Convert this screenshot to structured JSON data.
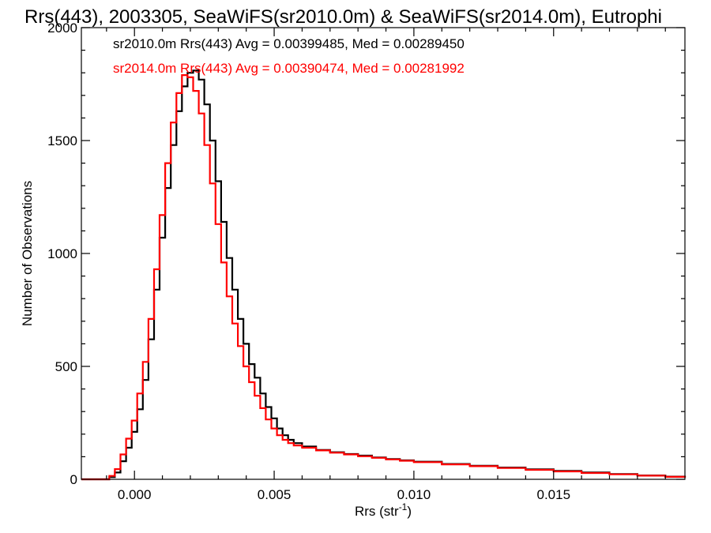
{
  "chart_data": {
    "type": "line",
    "subtype": "step-histogram",
    "title": "Rrs(443), 2003305, SeaWiFS(sr2010.0m) & SeaWiFS(sr2014.0m), Eutrophi",
    "xlabel": "Rrs (str",
    "xlabel_superscript": "-1",
    "xlabel_close": ")",
    "ylabel": "Number of Observations",
    "xlim": [
      -0.0019,
      0.0197
    ],
    "ylim": [
      0,
      2000
    ],
    "x_ticks": [
      0.0,
      0.005,
      0.01,
      0.015
    ],
    "x_tick_labels": [
      "0.000",
      "0.005",
      "0.010",
      "0.015"
    ],
    "y_ticks": [
      0,
      500,
      1000,
      1500,
      2000
    ],
    "y_tick_labels": [
      "0",
      "500",
      "1000",
      "1500",
      "2000"
    ],
    "legend_position": "top-left",
    "grid": false,
    "series": [
      {
        "name": "sr2010.0m Rrs(443)",
        "label": "sr2010.0m Rrs(443) Avg = 0.00399485, Med = 0.00289450",
        "color": "#000000",
        "x": [
          -0.0019,
          -0.0011,
          -0.0009,
          -0.0007,
          -0.0005,
          -0.0003,
          -0.0001,
          0.0001,
          0.0003,
          0.0005,
          0.0007,
          0.0009,
          0.0011,
          0.0013,
          0.0015,
          0.0017,
          0.0019,
          0.0021,
          0.0023,
          0.0025,
          0.0027,
          0.0029,
          0.0031,
          0.0033,
          0.0035,
          0.0037,
          0.0039,
          0.0041,
          0.0043,
          0.0045,
          0.0047,
          0.0049,
          0.0051,
          0.0053,
          0.0055,
          0.0057,
          0.006,
          0.0065,
          0.007,
          0.0075,
          0.008,
          0.0085,
          0.009,
          0.0095,
          0.01,
          0.011,
          0.012,
          0.013,
          0.014,
          0.015,
          0.016,
          0.017,
          0.018,
          0.019,
          0.0197
        ],
        "y": [
          0,
          0,
          10,
          30,
          80,
          140,
          210,
          310,
          440,
          620,
          840,
          1070,
          1290,
          1480,
          1630,
          1740,
          1800,
          1810,
          1770,
          1660,
          1500,
          1320,
          1140,
          980,
          840,
          710,
          600,
          510,
          450,
          380,
          320,
          270,
          225,
          195,
          175,
          160,
          145,
          130,
          120,
          112,
          105,
          97,
          90,
          84,
          78,
          68,
          60,
          52,
          44,
          37,
          30,
          23,
          17,
          12,
          8
        ]
      },
      {
        "name": "sr2014.0m Rrs(443)",
        "label": "sr2014.0m Rrs(443) Avg = 0.00390474, Med = 0.00281992",
        "color": "#ff0000",
        "x": [
          -0.0019,
          -0.0011,
          -0.0009,
          -0.0007,
          -0.0005,
          -0.0003,
          -0.0001,
          0.0001,
          0.0003,
          0.0005,
          0.0007,
          0.0009,
          0.0011,
          0.0013,
          0.0015,
          0.0017,
          0.0019,
          0.0021,
          0.0023,
          0.0025,
          0.0027,
          0.0029,
          0.0031,
          0.0033,
          0.0035,
          0.0037,
          0.0039,
          0.0041,
          0.0043,
          0.0045,
          0.0047,
          0.0049,
          0.0051,
          0.0053,
          0.0055,
          0.0057,
          0.006,
          0.0065,
          0.007,
          0.0075,
          0.008,
          0.0085,
          0.009,
          0.0095,
          0.01,
          0.011,
          0.012,
          0.013,
          0.014,
          0.015,
          0.016,
          0.017,
          0.018,
          0.019,
          0.0197
        ],
        "y": [
          0,
          0,
          15,
          45,
          110,
          180,
          260,
          380,
          520,
          710,
          930,
          1170,
          1400,
          1580,
          1710,
          1790,
          1780,
          1720,
          1620,
          1480,
          1310,
          1130,
          960,
          810,
          690,
          590,
          500,
          430,
          370,
          315,
          265,
          225,
          195,
          175,
          160,
          150,
          140,
          128,
          118,
          110,
          102,
          95,
          88,
          82,
          76,
          66,
          58,
          50,
          42,
          35,
          28,
          22,
          16,
          11,
          7
        ]
      }
    ]
  }
}
